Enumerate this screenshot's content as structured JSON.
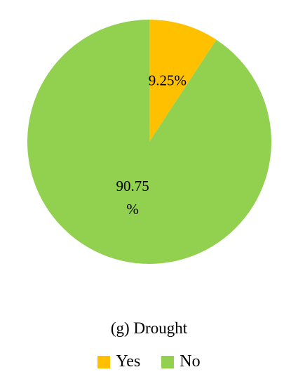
{
  "chart_data": {
    "type": "pie",
    "title": "(g) Drought",
    "categories": [
      "Yes",
      "No"
    ],
    "values": [
      9.25,
      90.75
    ],
    "value_labels": [
      "9.25%",
      "90.75 %"
    ],
    "colors": [
      "#FFC000",
      "#92D050"
    ]
  }
}
